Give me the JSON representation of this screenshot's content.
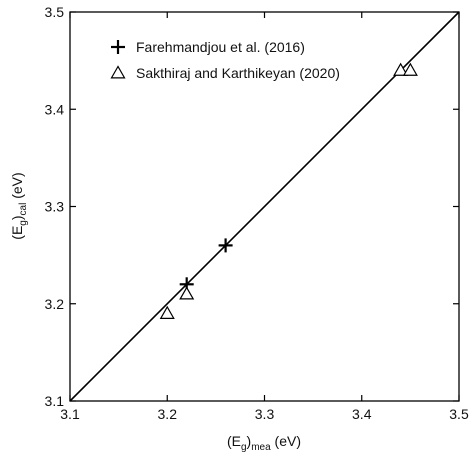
{
  "chart_data": {
    "type": "scatter",
    "x_axis": {
      "min": 3.1,
      "max": 3.5,
      "ticks": [
        "3.1",
        "3.2",
        "3.3",
        "3.4",
        "3.5"
      ],
      "label": {
        "main": "(E",
        "sub1": "g",
        "mid": ")",
        "sub2": "mea",
        "unit": " (eV)"
      }
    },
    "y_axis": {
      "min": 3.1,
      "max": 3.5,
      "ticks": [
        "3.1",
        "3.2",
        "3.3",
        "3.4",
        "3.5"
      ],
      "label": {
        "main": "(E",
        "sub1": "g",
        "mid": ")",
        "sub2": "cal",
        "unit": " (eV)"
      }
    },
    "reference_line": {
      "from": [
        3.1,
        3.1
      ],
      "to": [
        3.5,
        3.5
      ]
    },
    "legend_position": "top-left",
    "grid": false,
    "series": [
      {
        "name": "Farehmandjou et al. (2016)",
        "marker": "plus",
        "points": [
          [
            3.22,
            3.22
          ],
          [
            3.26,
            3.26
          ]
        ]
      },
      {
        "name": "Sakthiraj and Karthikeyan (2020)",
        "marker": "triangle-open",
        "points": [
          [
            3.2,
            3.19
          ],
          [
            3.22,
            3.21
          ],
          [
            3.44,
            3.44
          ],
          [
            3.45,
            3.44
          ]
        ]
      }
    ]
  }
}
